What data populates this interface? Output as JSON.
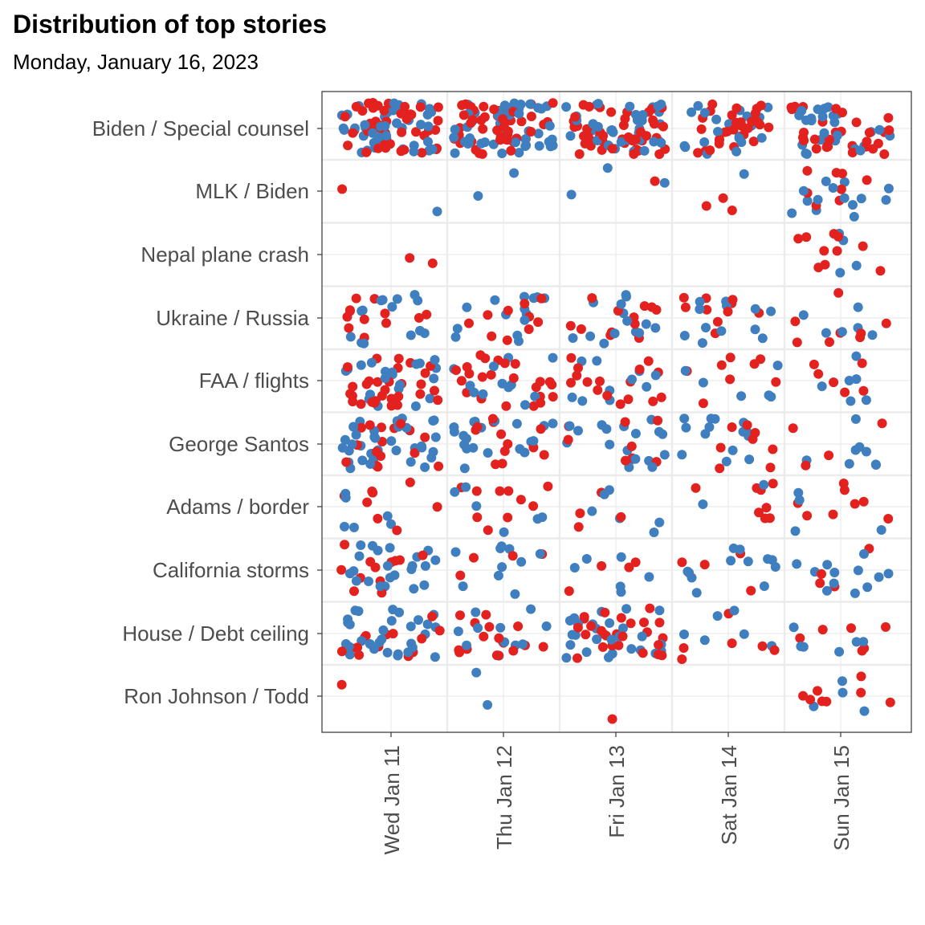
{
  "chart_data": {
    "type": "scatter",
    "subtype": "jitter",
    "title": "Distribution of top stories",
    "subtitle": "Monday, January 16, 2023",
    "xlabel": "",
    "ylabel": "",
    "x_categories": [
      "Wed Jan 11",
      "Thu Jan 12",
      "Fri Jan 13",
      "Sat Jan 14",
      "Sun Jan 15"
    ],
    "y_categories": [
      "Biden / Special counsel",
      "MLK / Biden",
      "Nepal plane crash",
      "Ukraine / Russia",
      "FAA / flights",
      "George Santos",
      "Adams / border",
      "California storms",
      "House / Debt ceiling",
      "Ron Johnson / Todd"
    ],
    "grid": true,
    "legend": "none",
    "colors": {
      "blue": "#3f7fbf",
      "red": "#e3211e",
      "panel_border": "#333333",
      "grid": "#ebebeb",
      "tick_text": "#4d4d4d"
    },
    "approx_point_counts": {
      "note_blue_red": "[blue, red] per row (top-to-bottom), per day (Wed..Sun)",
      "Biden / Special counsel": [
        [
          40,
          45
        ],
        [
          50,
          45
        ],
        [
          35,
          45
        ],
        [
          20,
          30
        ],
        [
          25,
          30
        ]
      ],
      "MLK / Biden": [
        [
          1,
          1
        ],
        [
          2,
          0
        ],
        [
          3,
          1
        ],
        [
          1,
          3
        ],
        [
          14,
          8
        ]
      ],
      "Nepal plane crash": [
        [
          0,
          2
        ],
        [
          0,
          0
        ],
        [
          0,
          0
        ],
        [
          0,
          0
        ],
        [
          4,
          10
        ]
      ],
      "Ukraine / Russia": [
        [
          14,
          12
        ],
        [
          14,
          10
        ],
        [
          14,
          12
        ],
        [
          12,
          10
        ],
        [
          6,
          8
        ]
      ],
      "FAA / flights": [
        [
          20,
          30
        ],
        [
          12,
          24
        ],
        [
          10,
          16
        ],
        [
          6,
          8
        ],
        [
          6,
          6
        ]
      ],
      "George Santos": [
        [
          36,
          16
        ],
        [
          20,
          12
        ],
        [
          18,
          8
        ],
        [
          14,
          8
        ],
        [
          8,
          4
        ]
      ],
      "Adams / border": [
        [
          6,
          8
        ],
        [
          6,
          10
        ],
        [
          6,
          4
        ],
        [
          2,
          8
        ],
        [
          4,
          8
        ]
      ],
      "California storms": [
        [
          22,
          12
        ],
        [
          10,
          4
        ],
        [
          6,
          4
        ],
        [
          12,
          4
        ],
        [
          12,
          4
        ]
      ],
      "House / Debt ceiling": [
        [
          30,
          14
        ],
        [
          12,
          16
        ],
        [
          26,
          26
        ],
        [
          6,
          6
        ],
        [
          6,
          6
        ]
      ],
      "Ron Johnson / Todd": [
        [
          0,
          1
        ],
        [
          2,
          0
        ],
        [
          0,
          1
        ],
        [
          0,
          0
        ],
        [
          4,
          8
        ]
      ]
    }
  }
}
